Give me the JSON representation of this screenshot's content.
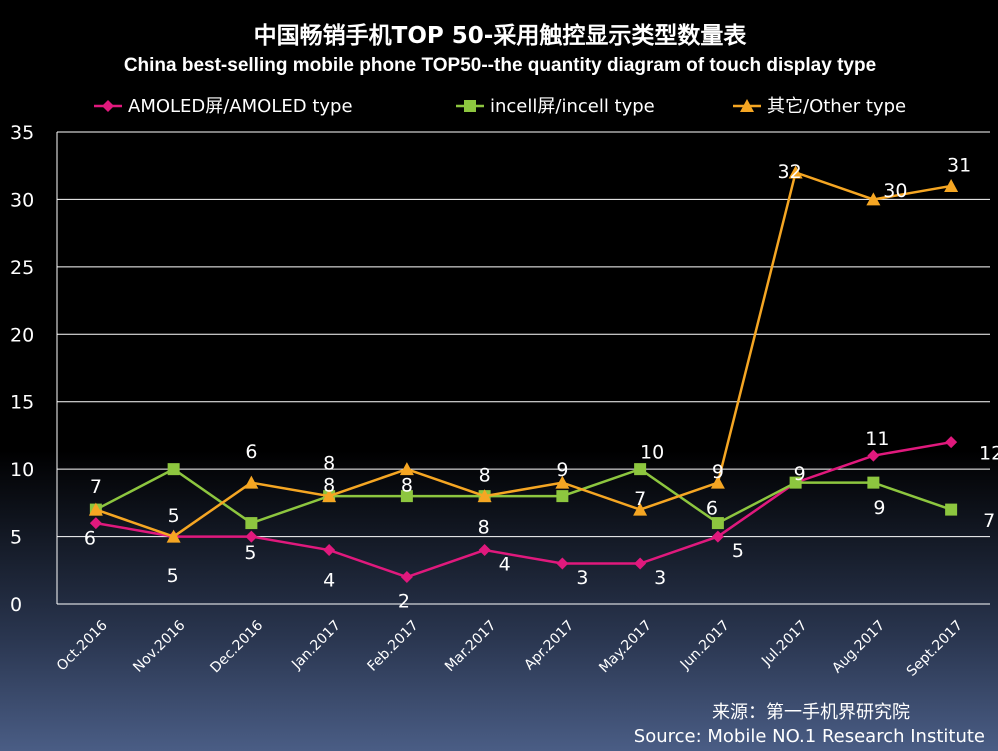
{
  "chart_data": {
    "type": "line",
    "title": "中国畅销手机TOP 50-采用触控显示类型数量表",
    "subtitle": "China best-selling mobile phone TOP50--the quantity diagram of touch display type",
    "categories": [
      "Oct.2016",
      "Nov.2016",
      "Dec.2016",
      "Jan.2017",
      "Feb.2017",
      "Mar.2017",
      "Apr.2017",
      "May.2017",
      "Jun.2017",
      "Jul.2017",
      "Aug.2017",
      "Sept.2017"
    ],
    "series": [
      {
        "name": "AMOLED屏/AMOLED type",
        "color": "#e0197d",
        "marker": "diamond",
        "values": [
          6,
          5,
          5,
          4,
          2,
          4,
          3,
          3,
          5,
          9,
          11,
          12
        ]
      },
      {
        "name": "incell屏/incell type",
        "color": "#8dc63f",
        "marker": "square",
        "values": [
          7,
          10,
          6,
          8,
          8,
          8,
          8,
          10,
          6,
          9,
          9,
          7
        ]
      },
      {
        "name": "其它/Other type",
        "color": "#f5a623",
        "marker": "triangle",
        "values": [
          7,
          5,
          9,
          8,
          10,
          8,
          9,
          7,
          9,
          32,
          30,
          31
        ]
      }
    ],
    "ylim": [
      0,
      35
    ],
    "yticks": [
      "0",
      "5",
      "10",
      "15",
      "20",
      "25",
      "30",
      "35"
    ],
    "grid": true,
    "legend_position": "top",
    "data_labels": [
      {
        "text": "6"
      },
      {
        "text": "7"
      },
      {
        "text": "5"
      },
      {
        "text": "5"
      },
      {
        "text": "6"
      },
      {
        "text": "5"
      },
      {
        "text": "8"
      },
      {
        "text": "8"
      },
      {
        "text": "4"
      },
      {
        "text": "8"
      },
      {
        "text": "2"
      },
      {
        "text": "8"
      },
      {
        "text": "8"
      },
      {
        "text": "4"
      },
      {
        "text": "9"
      },
      {
        "text": "3"
      },
      {
        "text": "7"
      },
      {
        "text": "10"
      },
      {
        "text": "3"
      },
      {
        "text": "9"
      },
      {
        "text": "6"
      },
      {
        "text": "5"
      },
      {
        "text": "32"
      },
      {
        "text": "9"
      },
      {
        "text": "11"
      },
      {
        "text": "30"
      },
      {
        "text": "9"
      },
      {
        "text": "31"
      },
      {
        "text": "12"
      },
      {
        "text": "7"
      }
    ]
  },
  "source": {
    "cn": "来源：第一手机界研究院",
    "en": "Source: Mobile NO.1 Research Institute"
  }
}
